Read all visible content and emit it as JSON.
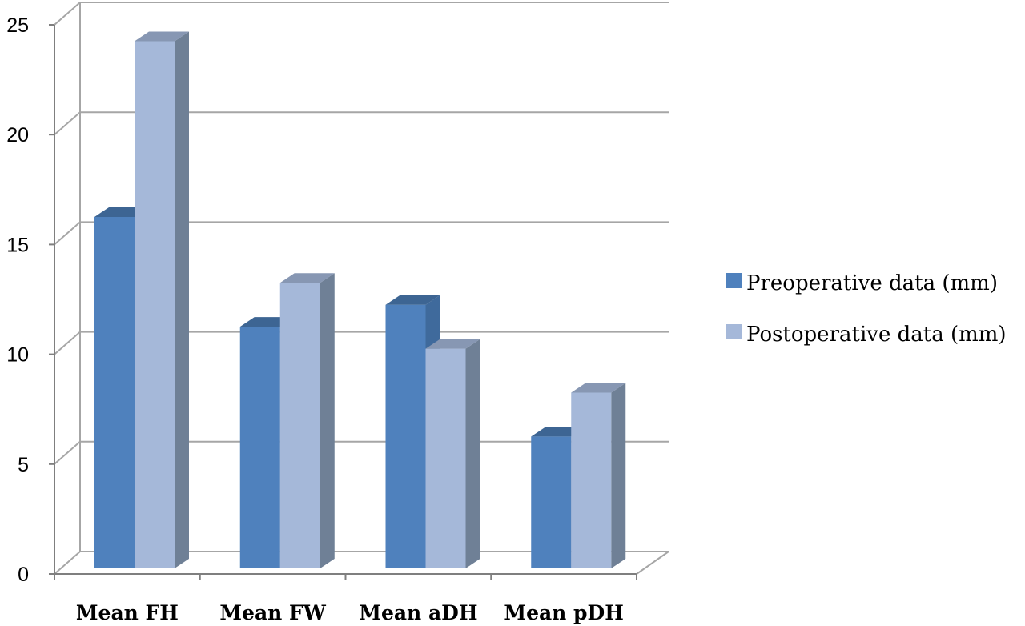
{
  "chart_data": {
    "type": "bar",
    "categories": [
      "Mean FH",
      "Mean FW",
      "Mean aDH",
      "Mean pDH"
    ],
    "series": [
      {
        "name": "Preoperative data (mm)",
        "values": [
          16,
          11,
          12,
          6
        ],
        "color": "#4f81bd"
      },
      {
        "name": "Postoperative data (mm)",
        "values": [
          24,
          13,
          10,
          8
        ],
        "color": "#a5b8d9"
      }
    ],
    "ylim": [
      0,
      25
    ],
    "yticks": [
      0,
      5,
      10,
      15,
      20,
      25
    ],
    "grid": true,
    "legend": "right",
    "title": "",
    "xlabel": "",
    "ylabel": ""
  }
}
